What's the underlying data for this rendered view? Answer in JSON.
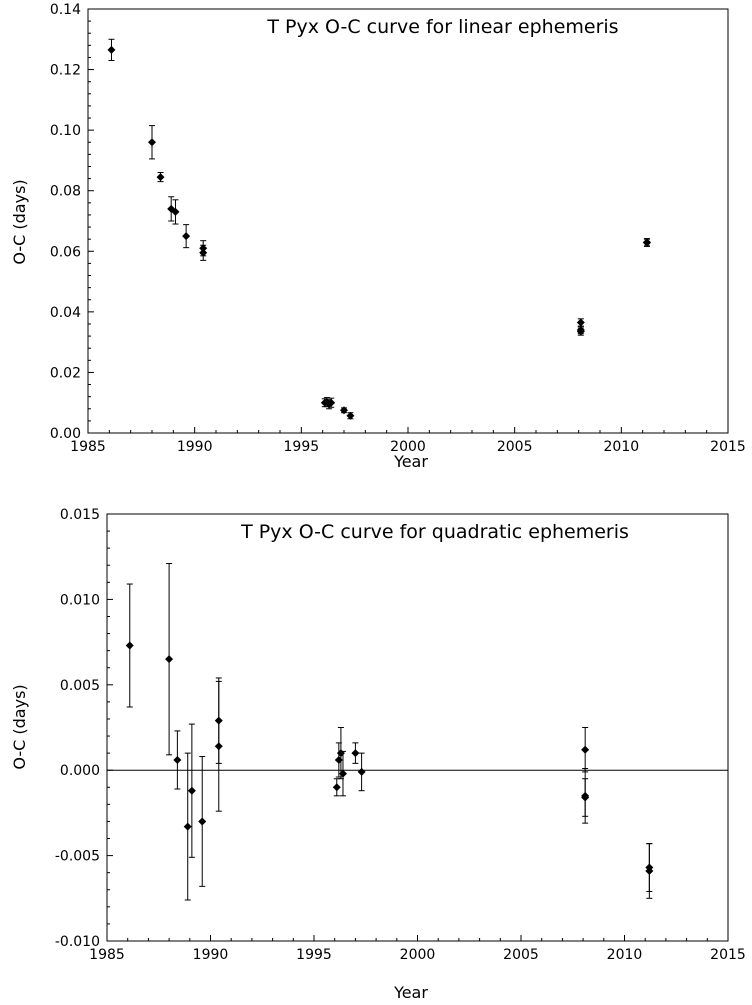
{
  "chart_data": [
    {
      "type": "scatter",
      "title": "T Pyx O-C curve for linear ephemeris",
      "xlabel": "Year",
      "ylabel": "O-C (days)",
      "xlim": [
        1985,
        2015
      ],
      "ylim": [
        0,
        0.14
      ],
      "x_ticks": [
        "1985",
        "1990",
        "1995",
        "2000",
        "2005",
        "2010",
        "2015"
      ],
      "y_ticks": [
        "0.00",
        "0.02",
        "0.04",
        "0.06",
        "0.08",
        "0.10",
        "0.12",
        "0.14"
      ],
      "grid": false,
      "zero_line": false,
      "points": [
        {
          "x": 1986.1,
          "y": 0.1265,
          "err": 0.0035
        },
        {
          "x": 1988.0,
          "y": 0.096,
          "err": 0.0055
        },
        {
          "x": 1988.4,
          "y": 0.0845,
          "err": 0.0015
        },
        {
          "x": 1988.9,
          "y": 0.074,
          "err": 0.004
        },
        {
          "x": 1989.1,
          "y": 0.073,
          "err": 0.004
        },
        {
          "x": 1989.6,
          "y": 0.065,
          "err": 0.0038
        },
        {
          "x": 1990.4,
          "y": 0.061,
          "err": 0.0025
        },
        {
          "x": 1990.4,
          "y": 0.0595,
          "err": 0.0025
        },
        {
          "x": 1996.1,
          "y": 0.01,
          "err": 0.0013
        },
        {
          "x": 1996.2,
          "y": 0.0102,
          "err": 0.0015
        },
        {
          "x": 1996.3,
          "y": 0.0095,
          "err": 0.0015
        },
        {
          "x": 1996.4,
          "y": 0.01,
          "err": 0.0015
        },
        {
          "x": 1997.0,
          "y": 0.0075,
          "err": 0.0008
        },
        {
          "x": 1997.3,
          "y": 0.0057,
          "err": 0.001
        },
        {
          "x": 2008.1,
          "y": 0.0365,
          "err": 0.0012
        },
        {
          "x": 2008.1,
          "y": 0.034,
          "err": 0.0012
        },
        {
          "x": 2008.1,
          "y": 0.0335,
          "err": 0.0012
        },
        {
          "x": 2011.2,
          "y": 0.063,
          "err": 0.0012
        },
        {
          "x": 2011.2,
          "y": 0.0628,
          "err": 0.0012
        }
      ]
    },
    {
      "type": "scatter",
      "title": "T Pyx O-C curve for quadratic ephemeris",
      "xlabel": "Year",
      "ylabel": "O-C (days)",
      "xlim": [
        1985,
        2015
      ],
      "ylim": [
        -0.01,
        0.015
      ],
      "x_ticks": [
        "1985",
        "1990",
        "1995",
        "2000",
        "2005",
        "2010",
        "2015"
      ],
      "y_ticks": [
        "-0.010",
        "-0.005",
        "0.000",
        "0.005",
        "0.010",
        "0.015"
      ],
      "grid": false,
      "zero_line": true,
      "points": [
        {
          "x": 1986.1,
          "y": 0.0073,
          "err": 0.0036
        },
        {
          "x": 1988.0,
          "y": 0.0065,
          "err": 0.0056
        },
        {
          "x": 1988.4,
          "y": 0.0006,
          "err": 0.0017
        },
        {
          "x": 1988.9,
          "y": -0.0033,
          "err": 0.0043
        },
        {
          "x": 1989.1,
          "y": -0.0012,
          "err": 0.0039
        },
        {
          "x": 1989.6,
          "y": -0.003,
          "err": 0.0038
        },
        {
          "x": 1990.4,
          "y": 0.0029,
          "err": 0.0025
        },
        {
          "x": 1990.4,
          "y": 0.0014,
          "err": 0.0038
        },
        {
          "x": 1996.1,
          "y": -0.001,
          "err": 0.0005
        },
        {
          "x": 1996.2,
          "y": 0.0006,
          "err": 0.001
        },
        {
          "x": 1996.3,
          "y": 0.001,
          "err": 0.0015
        },
        {
          "x": 1996.4,
          "y": -0.0002,
          "err": 0.0013
        },
        {
          "x": 1997.0,
          "y": 0.001,
          "err": 0.0006
        },
        {
          "x": 1997.3,
          "y": -0.0001,
          "err": 0.0011
        },
        {
          "x": 2008.1,
          "y": 0.0012,
          "err": 0.0013
        },
        {
          "x": 2008.1,
          "y": -0.0015,
          "err": 0.0016
        },
        {
          "x": 2008.1,
          "y": -0.0016,
          "err": 0.0011
        },
        {
          "x": 2011.2,
          "y": -0.0057,
          "err": 0.0014
        },
        {
          "x": 2011.2,
          "y": -0.0059,
          "err": 0.0016
        }
      ]
    }
  ]
}
